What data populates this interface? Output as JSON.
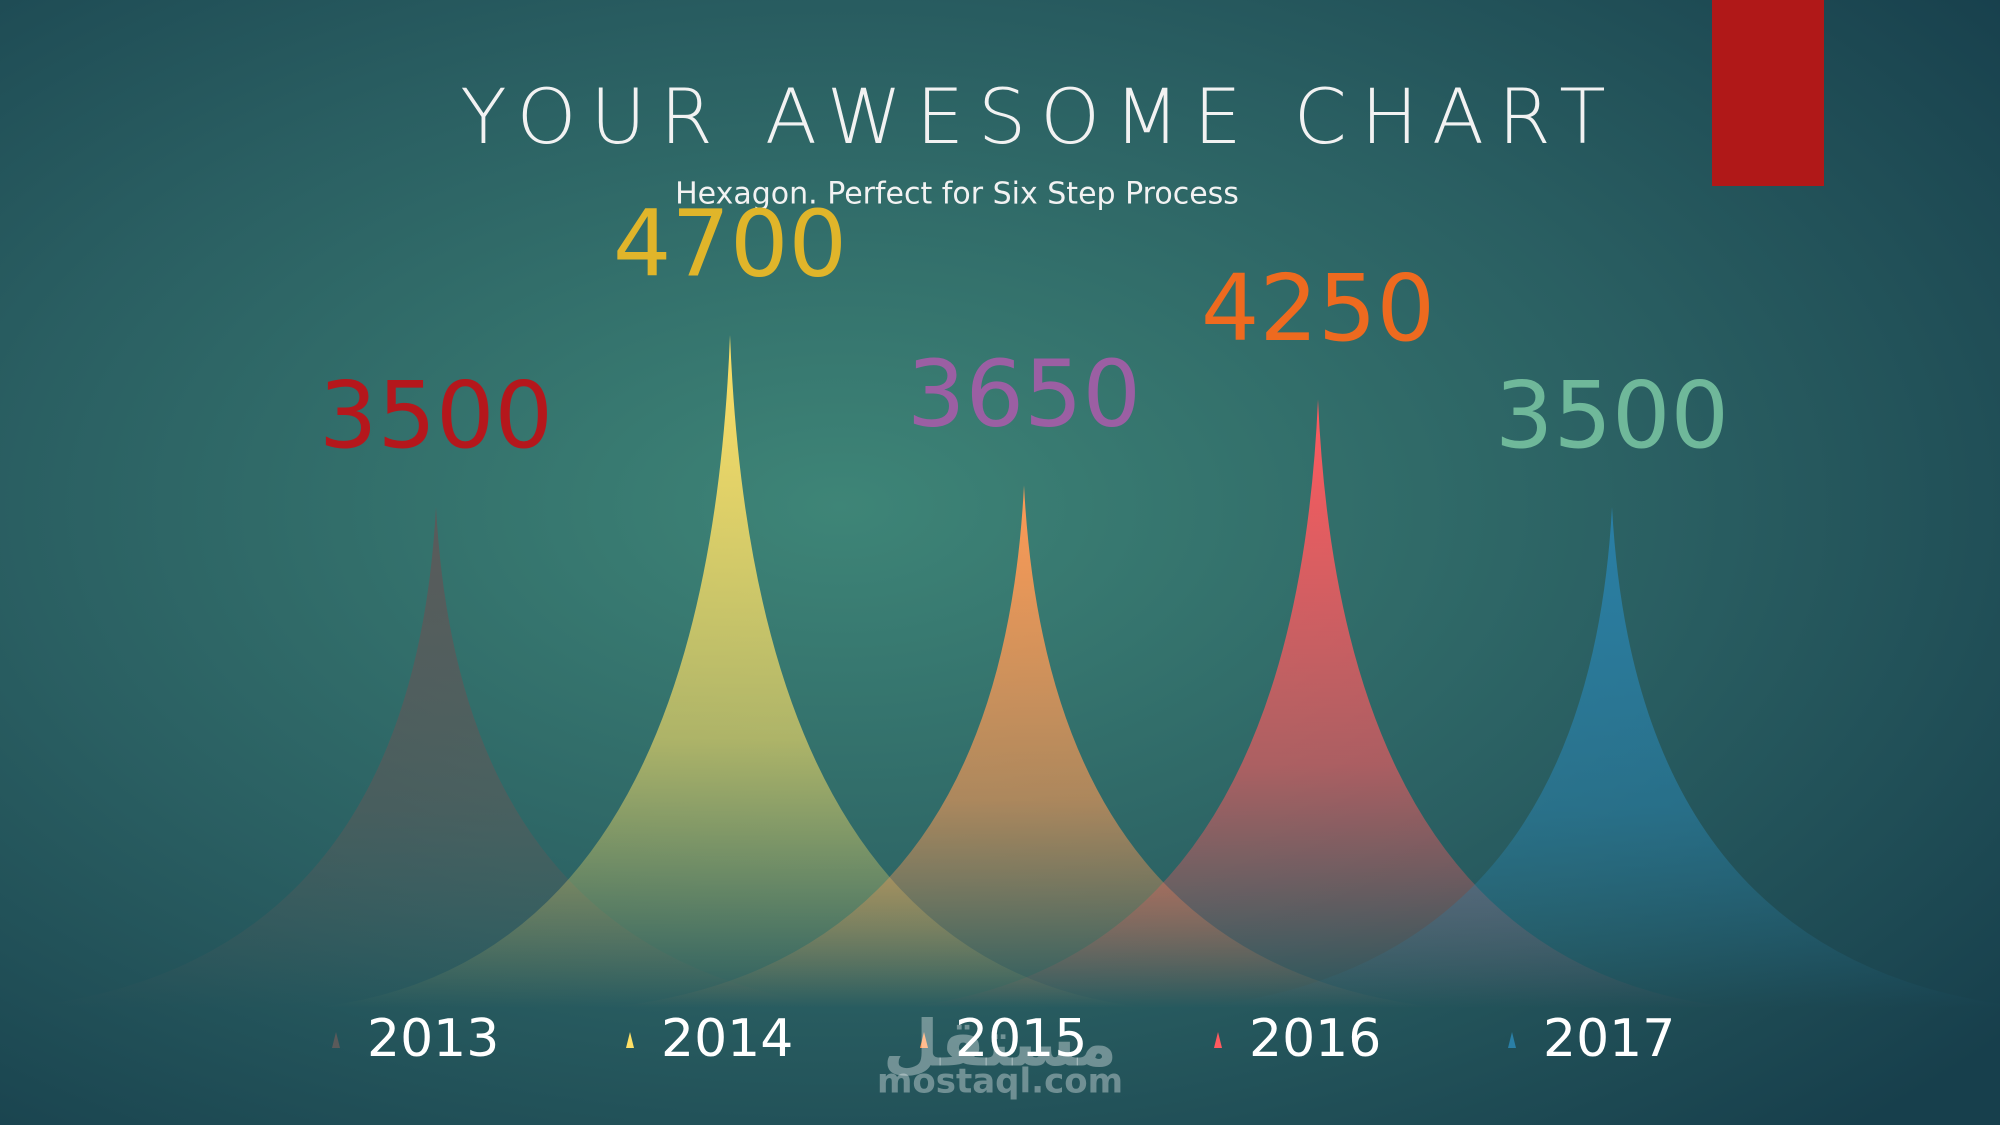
{
  "chart_data": {
    "type": "peak",
    "title": "YOUR AWESOME CHART",
    "subtitle": "Hexagon. Perfect for Six Step Process",
    "categories": [
      "2013",
      "2014",
      "2015",
      "2016",
      "2017"
    ],
    "values": [
      3500,
      4700,
      3650,
      4250,
      3500
    ],
    "colors": [
      "#5a5a5a",
      "#ffe066",
      "#ff9a55",
      "#ff5a5f",
      "#2a7fa6"
    ],
    "label_colors": [
      "#b5171c",
      "#e0b52a",
      "#9b5fa3",
      "#ee6a1f",
      "#6fb89a"
    ],
    "watermark": "mostaql.com",
    "watermark_logo": "مستقل"
  }
}
